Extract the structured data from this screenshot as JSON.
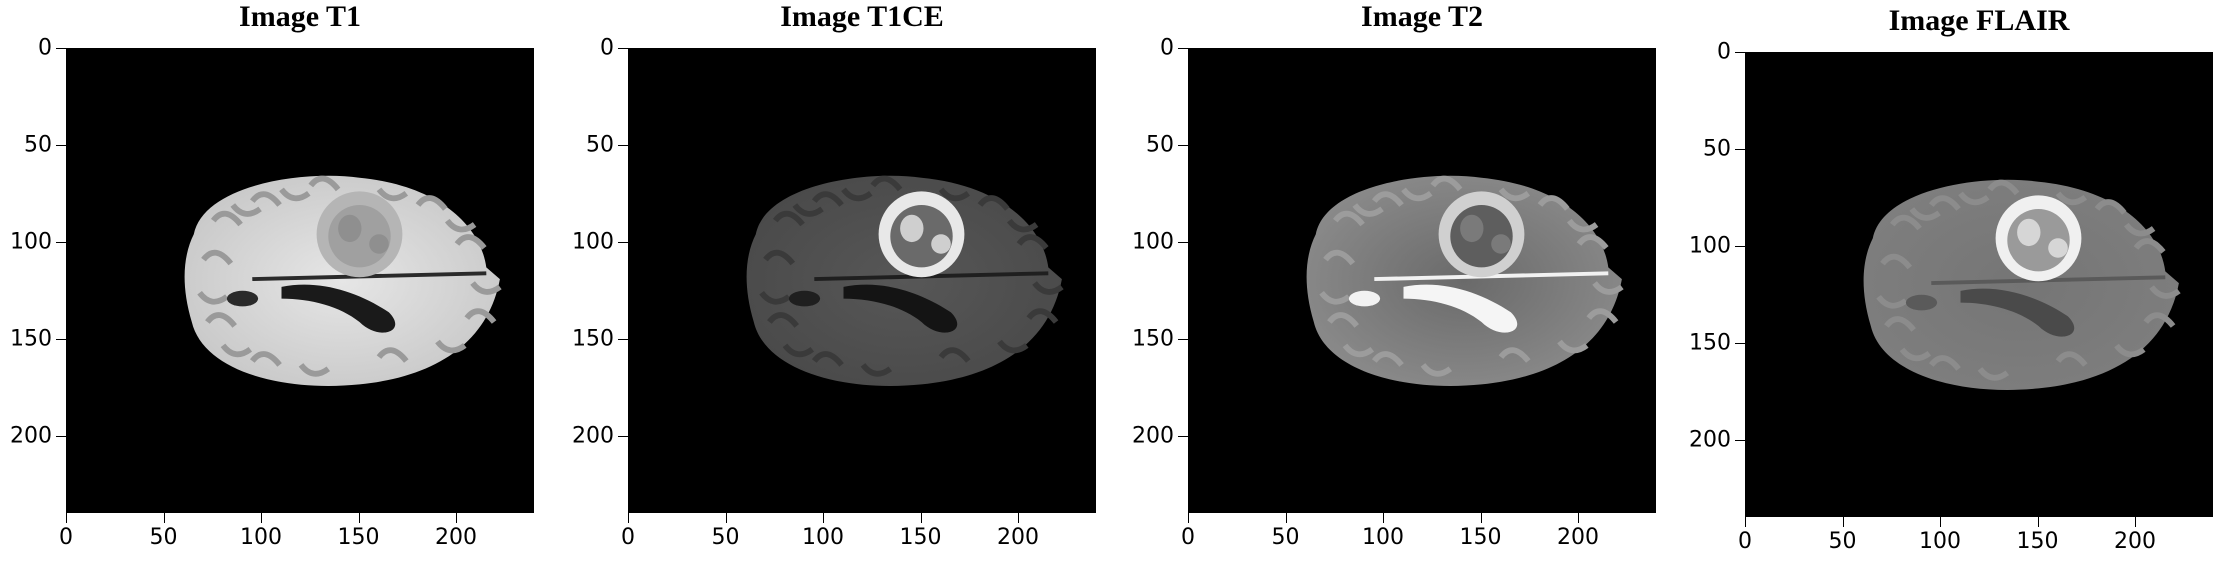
{
  "panels": [
    {
      "title": "Image T1",
      "modality": "T1"
    },
    {
      "title": "Image T1CE",
      "modality": "T1CE"
    },
    {
      "title": "Image T2",
      "modality": "T2"
    },
    {
      "title": "Image FLAIR",
      "modality": "FLAIR"
    }
  ],
  "axes": {
    "x_ticks": [
      "0",
      "50",
      "100",
      "150",
      "200"
    ],
    "y_ticks": [
      "0",
      "50",
      "100",
      "150",
      "200"
    ],
    "x_tick_values": [
      0,
      50,
      100,
      150,
      200
    ],
    "y_tick_values": [
      0,
      50,
      100,
      150,
      200
    ],
    "extent": 240
  }
}
